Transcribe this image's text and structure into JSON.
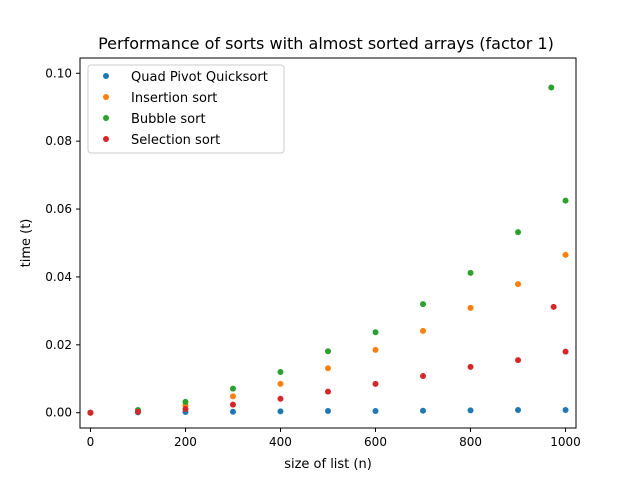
{
  "chart_data": {
    "type": "scatter",
    "title": "Performance of sorts with almost sorted arrays (factor 1)",
    "xlabel": "size of list (n)",
    "ylabel": "time (t)",
    "xlim": [
      -22,
      1022
    ],
    "ylim": [
      -0.0045,
      0.1045
    ],
    "xticks": [
      0,
      200,
      400,
      600,
      800,
      1000
    ],
    "xtick_labels": [
      "0",
      "200",
      "400",
      "600",
      "800",
      "1000"
    ],
    "yticks": [
      0,
      0.02,
      0.04,
      0.06,
      0.08,
      0.1
    ],
    "ytick_labels": [
      "0.00",
      "0.02",
      "0.04",
      "0.06",
      "0.08",
      "0.10"
    ],
    "grid": false,
    "legend_position": "top-left",
    "series": [
      {
        "name": "Quad Pivot Quicksort",
        "color": "#1f77b4",
        "x": [
          0,
          100,
          200,
          300,
          400,
          500,
          600,
          700,
          800,
          900,
          1000
        ],
        "y": [
          0.0,
          0.0001,
          0.0002,
          0.0003,
          0.0004,
          0.0005,
          0.0005,
          0.0006,
          0.0007,
          0.0008,
          0.0008
        ]
      },
      {
        "name": "Insertion sort",
        "color": "#ff7f0e",
        "x": [
          0,
          100,
          200,
          300,
          400,
          500,
          600,
          700,
          800,
          900,
          1000
        ],
        "y": [
          0.0,
          0.0006,
          0.0022,
          0.0048,
          0.0085,
          0.0131,
          0.0185,
          0.0241,
          0.0309,
          0.0379,
          0.0465
        ]
      },
      {
        "name": "Bubble sort",
        "color": "#2ca02c",
        "x": [
          0,
          100,
          200,
          300,
          400,
          500,
          600,
          700,
          800,
          900,
          970,
          1000
        ],
        "y": [
          0.0,
          0.0008,
          0.0032,
          0.0071,
          0.012,
          0.0181,
          0.0237,
          0.032,
          0.0412,
          0.0532,
          0.0958,
          0.0625
        ]
      },
      {
        "name": "Selection sort",
        "color": "#d62728",
        "x": [
          0,
          100,
          200,
          300,
          400,
          500,
          600,
          700,
          800,
          900,
          975,
          1000
        ],
        "y": [
          0.0,
          0.0003,
          0.0011,
          0.0024,
          0.0041,
          0.0062,
          0.0085,
          0.0108,
          0.0135,
          0.0155,
          0.0312,
          0.018
        ]
      }
    ]
  }
}
